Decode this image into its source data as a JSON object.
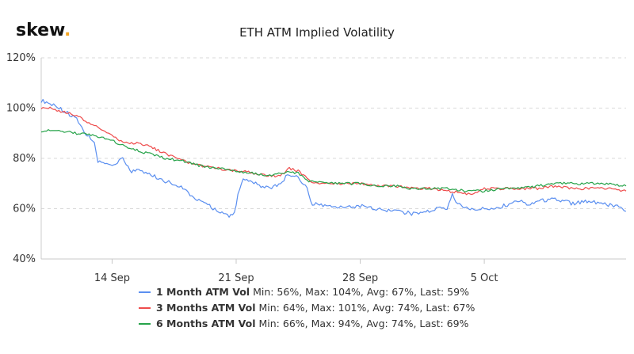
{
  "brand": {
    "name": "skew",
    "dot": "."
  },
  "chart_data": {
    "type": "line",
    "title": "ETH ATM Implied Volatility",
    "xlabel": "",
    "ylabel": "",
    "x_domain_days": [
      0,
      33
    ],
    "x_ticks": [
      {
        "day": 4,
        "label": "14 Sep"
      },
      {
        "day": 11,
        "label": "21 Sep"
      },
      {
        "day": 18,
        "label": "28 Sep"
      },
      {
        "day": 25,
        "label": "5 Oct"
      }
    ],
    "ylim": [
      40,
      120
    ],
    "y_ticks": [
      {
        "value": 40,
        "label": "40%"
      },
      {
        "value": 60,
        "label": "60%"
      },
      {
        "value": 80,
        "label": "80%"
      },
      {
        "value": 100,
        "label": "100%"
      },
      {
        "value": 120,
        "label": "120%"
      }
    ],
    "grid": "horizontal-dashed",
    "legend_position": "bottom",
    "series": [
      {
        "name": "1 Month ATM Vol",
        "color": "#5b8ff0",
        "stats": "Min: 56%, Max: 104%, Avg: 67%, Last: 59%",
        "points": [
          [
            0,
            103
          ],
          [
            0.5,
            102
          ],
          [
            1,
            100
          ],
          [
            1.5,
            98
          ],
          [
            2,
            96
          ],
          [
            2.3,
            92
          ],
          [
            2.5,
            90
          ],
          [
            3,
            86
          ],
          [
            3.2,
            79
          ],
          [
            3.5,
            78
          ],
          [
            4,
            77
          ],
          [
            4.3,
            78
          ],
          [
            4.6,
            80
          ],
          [
            5,
            75
          ],
          [
            5.5,
            75
          ],
          [
            6,
            74
          ],
          [
            7,
            71
          ],
          [
            8,
            68
          ],
          [
            8.7,
            64
          ],
          [
            9,
            63
          ],
          [
            9.5,
            61
          ],
          [
            10,
            59
          ],
          [
            10.3,
            58
          ],
          [
            10.6,
            57
          ],
          [
            10.9,
            59
          ],
          [
            11.2,
            68
          ],
          [
            11.4,
            72
          ],
          [
            12,
            70
          ],
          [
            12.5,
            69
          ],
          [
            13,
            68
          ],
          [
            13.5,
            70
          ],
          [
            14,
            74
          ],
          [
            14.5,
            72
          ],
          [
            15,
            69
          ],
          [
            15.3,
            61
          ],
          [
            15.6,
            62
          ],
          [
            16,
            61
          ],
          [
            17,
            61
          ],
          [
            18,
            61
          ],
          [
            19,
            60
          ],
          [
            20,
            59
          ],
          [
            21,
            58
          ],
          [
            22,
            59
          ],
          [
            22.5,
            61
          ],
          [
            22.9,
            60
          ],
          [
            23.2,
            66
          ],
          [
            23.5,
            62
          ],
          [
            24,
            60
          ],
          [
            25,
            60
          ],
          [
            26,
            61
          ],
          [
            27,
            63
          ],
          [
            27.5,
            61
          ],
          [
            28,
            63
          ],
          [
            29,
            64
          ],
          [
            30,
            62
          ],
          [
            31,
            63
          ],
          [
            31.5,
            62
          ],
          [
            32.5,
            61
          ],
          [
            33,
            59
          ]
        ]
      },
      {
        "name": "3 Months ATM Vol",
        "color": "#ee4c4c",
        "stats": "Min: 64%, Max: 101%, Avg: 74%, Last: 67%",
        "points": [
          [
            0,
            100
          ],
          [
            0.5,
            100
          ],
          [
            1,
            99
          ],
          [
            1.5,
            98
          ],
          [
            2,
            97
          ],
          [
            2.5,
            95
          ],
          [
            3,
            93
          ],
          [
            3.5,
            91
          ],
          [
            4,
            89
          ],
          [
            4.5,
            87
          ],
          [
            5,
            86
          ],
          [
            5.5,
            86
          ],
          [
            6,
            85
          ],
          [
            7,
            82
          ],
          [
            8,
            79
          ],
          [
            9,
            77
          ],
          [
            10,
            76
          ],
          [
            11,
            75
          ],
          [
            11.5,
            75
          ],
          [
            12,
            74
          ],
          [
            13,
            73
          ],
          [
            13.5,
            73
          ],
          [
            14,
            76
          ],
          [
            14.5,
            75
          ],
          [
            15,
            72
          ],
          [
            15.3,
            70
          ],
          [
            15.6,
            70
          ],
          [
            16,
            70
          ],
          [
            17,
            70
          ],
          [
            18,
            70
          ],
          [
            19,
            69
          ],
          [
            20,
            69
          ],
          [
            21,
            68
          ],
          [
            22,
            68
          ],
          [
            23,
            67
          ],
          [
            24,
            66
          ],
          [
            24.5,
            66
          ],
          [
            25,
            68
          ],
          [
            26,
            68
          ],
          [
            27,
            68
          ],
          [
            28,
            68
          ],
          [
            29,
            69
          ],
          [
            30,
            68
          ],
          [
            31,
            68
          ],
          [
            32,
            68
          ],
          [
            33,
            67
          ]
        ]
      },
      {
        "name": "6 Months ATM Vol",
        "color": "#27a34a",
        "stats": "Min: 66%, Max: 94%, Avg: 74%, Last: 69%",
        "points": [
          [
            0,
            91
          ],
          [
            1,
            91
          ],
          [
            2,
            90
          ],
          [
            3,
            89
          ],
          [
            4,
            87
          ],
          [
            5,
            84
          ],
          [
            6,
            82
          ],
          [
            7,
            80
          ],
          [
            8,
            79
          ],
          [
            9,
            77
          ],
          [
            10,
            76
          ],
          [
            11,
            75
          ],
          [
            12,
            74
          ],
          [
            13,
            73
          ],
          [
            14,
            75
          ],
          [
            14.5,
            74
          ],
          [
            15,
            71
          ],
          [
            15.5,
            71
          ],
          [
            16,
            70
          ],
          [
            17,
            70
          ],
          [
            18,
            70
          ],
          [
            19,
            69
          ],
          [
            20,
            69
          ],
          [
            21,
            68
          ],
          [
            22,
            68
          ],
          [
            23,
            68
          ],
          [
            24,
            67
          ],
          [
            25,
            67
          ],
          [
            26,
            68
          ],
          [
            27,
            68
          ],
          [
            28,
            69
          ],
          [
            29,
            70
          ],
          [
            30,
            70
          ],
          [
            31,
            70
          ],
          [
            32,
            70
          ],
          [
            33,
            69
          ]
        ]
      }
    ]
  }
}
